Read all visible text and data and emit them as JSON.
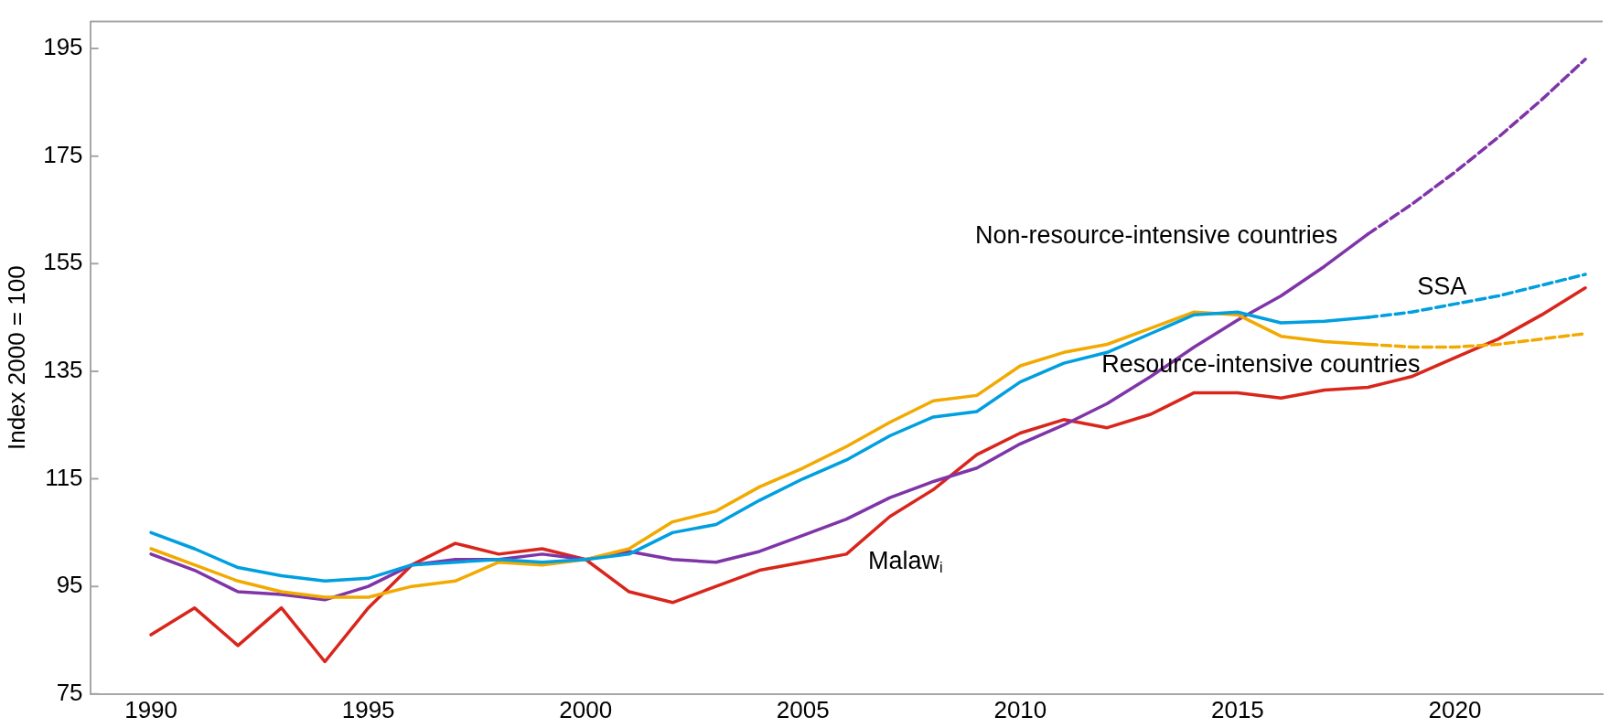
{
  "chart_data": {
    "type": "line",
    "ylabel": "Index 2000 = 100",
    "xlim": [
      1988.6,
      2023.4
    ],
    "xticks": [
      1990,
      1995,
      2000,
      2005,
      2010,
      2015,
      2020
    ],
    "ylim": [
      75,
      200
    ],
    "yticks": [
      75,
      95,
      115,
      135,
      155,
      175,
      195
    ],
    "grid": false,
    "legend": false,
    "marker": "none",
    "series": [
      {
        "name": "SSA",
        "color": "#009fdf",
        "line_style": "solid",
        "x": [
          1990,
          1991,
          1992,
          1993,
          1994,
          1995,
          1996,
          1997,
          1998,
          1999,
          2000,
          2001,
          2002,
          2003,
          2004,
          2005,
          2006,
          2007,
          2008,
          2009,
          2010,
          2011,
          2012,
          2013,
          2014,
          2015,
          2016,
          2017,
          2018
        ],
        "values": [
          105,
          102,
          98.5,
          97,
          96,
          96.5,
          99,
          99.5,
          100,
          99.5,
          100,
          101,
          105,
          106.5,
          111,
          115,
          118.5,
          123,
          126.5,
          127.5,
          133,
          136.5,
          138.5,
          142,
          145.5,
          146,
          144,
          144.3,
          145
        ]
      },
      {
        "color": "#009fdf",
        "line_style": "dashed",
        "x": [
          2018,
          2019,
          2020,
          2021,
          2022,
          2023
        ],
        "values": [
          145,
          146,
          147.5,
          149,
          151,
          153
        ]
      },
      {
        "name": "Resource-intensive countries",
        "color": "#f2a900",
        "line_style": "solid",
        "x": [
          1990,
          1991,
          1992,
          1993,
          1994,
          1995,
          1996,
          1997,
          1998,
          1999,
          2000,
          2001,
          2002,
          2003,
          2004,
          2005,
          2006,
          2007,
          2008,
          2009,
          2010,
          2011,
          2012,
          2013,
          2014,
          2015,
          2016,
          2017,
          2018
        ],
        "values": [
          102,
          99,
          96,
          94,
          93,
          93,
          95,
          96,
          99.5,
          99,
          100,
          102,
          107,
          109,
          113.5,
          117,
          121,
          125.5,
          129.5,
          130.5,
          136,
          138.5,
          140,
          143,
          146,
          145.5,
          141.5,
          140.5,
          140
        ]
      },
      {
        "color": "#f2a900",
        "line_style": "dashed",
        "x": [
          2018,
          2019,
          2020,
          2021,
          2022,
          2023
        ],
        "values": [
          140,
          139.5,
          139.5,
          140,
          141,
          142
        ]
      },
      {
        "name": "Non-resource-intensive countries",
        "color": "#7f35a8",
        "line_style": "solid",
        "x": [
          1990,
          1991,
          1992,
          1993,
          1994,
          1995,
          1996,
          1997,
          1998,
          1999,
          2000,
          2001,
          2002,
          2003,
          2004,
          2005,
          2006,
          2007,
          2008,
          2009,
          2010,
          2011,
          2012,
          2013,
          2014,
          2015,
          2016,
          2017,
          2018
        ],
        "values": [
          101,
          98,
          94,
          93.5,
          92.5,
          95,
          99,
          100,
          100,
          101,
          100,
          101.5,
          100,
          99.5,
          101.5,
          104.5,
          107.5,
          111.5,
          114.5,
          117,
          121.5,
          125,
          129,
          134,
          139.5,
          144.5,
          149,
          154.5,
          160.5
        ]
      },
      {
        "color": "#7f35a8",
        "line_style": "dashed",
        "x": [
          2018,
          2019,
          2020,
          2021,
          2022,
          2023
        ],
        "values": [
          160.5,
          166,
          172,
          178.5,
          185.5,
          193
        ]
      },
      {
        "name": "Malaw$_{i}$",
        "color": "#d9261c",
        "line_style": "solid",
        "x": [
          1990,
          1991,
          1992,
          1993,
          1994,
          1995,
          1996,
          1997,
          1998,
          1999,
          2000,
          2001,
          2002,
          2003,
          2004,
          2005,
          2006,
          2007,
          2008,
          2009,
          2010,
          2011,
          2012,
          2013,
          2014,
          2015,
          2016,
          2017,
          2018,
          2019,
          2020,
          2021,
          2022,
          2023
        ],
        "values": [
          86,
          91,
          84,
          91,
          81,
          91,
          99,
          103,
          101,
          102,
          100,
          94,
          92,
          95,
          98,
          99.5,
          101,
          108,
          113,
          119.5,
          123.5,
          126,
          124.5,
          127,
          131,
          131,
          130,
          131.5,
          132,
          134,
          137.5,
          141,
          145.5,
          150.5
        ]
      }
    ]
  }
}
